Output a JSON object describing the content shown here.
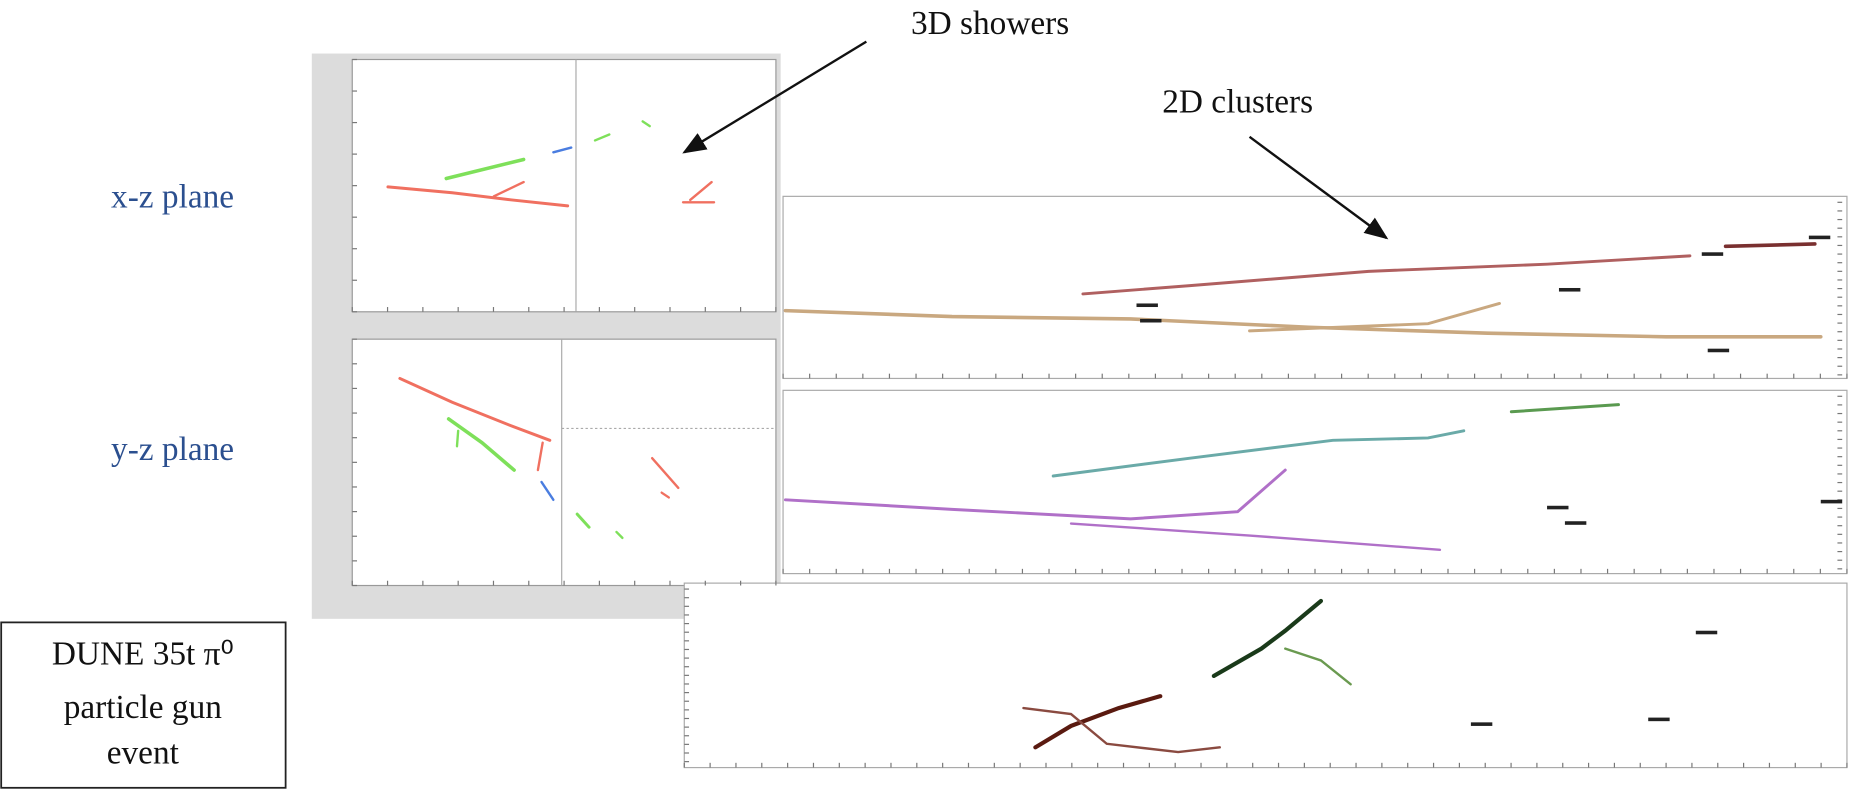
{
  "annotations": {
    "showers": "3D showers",
    "clusters": "2D clusters"
  },
  "planes": {
    "xz": "x-z plane",
    "yz": "y-z plane"
  },
  "caption_box": {
    "lines": [
      "DUNE 35t π⁰",
      "particle gun",
      "event"
    ]
  }
}
